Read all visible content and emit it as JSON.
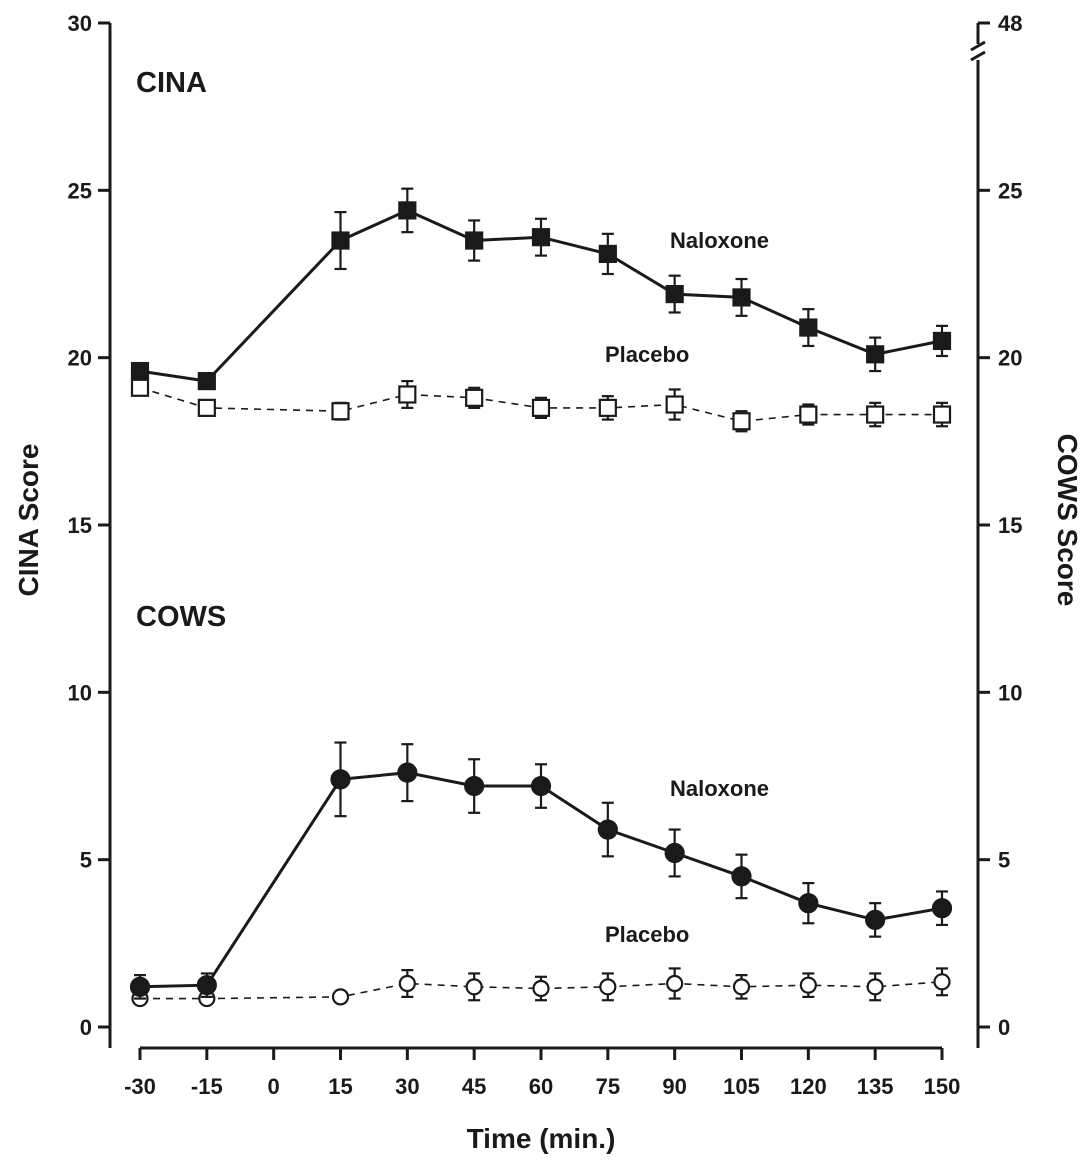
{
  "chart_data": {
    "type": "line",
    "xlabel": "Time (min.)",
    "ylabel_left": "CINA Score",
    "ylabel_right": "COWS Score",
    "x_ticks": [
      "-30",
      "-15",
      "0",
      "15",
      "30",
      "45",
      "60",
      "75",
      "90",
      "105",
      "120",
      "135",
      "150"
    ],
    "xlim": [
      -30,
      150
    ],
    "left_axis": {
      "ylim": [
        0,
        30
      ],
      "ticks": [
        "0",
        "5",
        "10",
        "15",
        "20",
        "25",
        "30"
      ]
    },
    "right_axis": {
      "ticks": [
        "0",
        "5",
        "10",
        "15",
        "20",
        "25",
        "48"
      ],
      "axis_break": true
    },
    "grid": false,
    "panels": [
      {
        "title": "CINA",
        "series": [
          {
            "name": "Naloxone",
            "marker": "filled-square",
            "line": "solid",
            "x": [
              -30,
              -15,
              15,
              30,
              45,
              60,
              75,
              90,
              105,
              120,
              135,
              150
            ],
            "values": [
              19.6,
              19.3,
              23.5,
              24.4,
              23.5,
              23.6,
              23.1,
              21.9,
              21.8,
              20.9,
              20.1,
              20.5
            ],
            "errors": [
              0.2,
              0.2,
              0.85,
              0.65,
              0.6,
              0.55,
              0.6,
              0.55,
              0.55,
              0.55,
              0.5,
              0.45
            ]
          },
          {
            "name": "Placebo",
            "marker": "open-square",
            "line": "dashed",
            "x": [
              -30,
              -15,
              15,
              30,
              45,
              60,
              75,
              90,
              105,
              120,
              135,
              150
            ],
            "values": [
              19.1,
              18.5,
              18.4,
              18.9,
              18.8,
              18.5,
              18.5,
              18.6,
              18.1,
              18.3,
              18.3,
              18.3
            ],
            "errors": [
              0.1,
              0.15,
              0.25,
              0.4,
              0.3,
              0.3,
              0.35,
              0.45,
              0.3,
              0.3,
              0.35,
              0.35
            ]
          }
        ]
      },
      {
        "title": "COWS",
        "series": [
          {
            "name": "Naloxone",
            "marker": "filled-circle",
            "line": "solid",
            "x": [
              -30,
              -15,
              15,
              30,
              45,
              60,
              75,
              90,
              105,
              120,
              135,
              150
            ],
            "values": [
              1.2,
              1.25,
              7.4,
              7.6,
              7.2,
              7.2,
              5.9,
              5.2,
              4.5,
              3.7,
              3.2,
              3.55
            ],
            "errors": [
              0.35,
              0.35,
              1.1,
              0.85,
              0.8,
              0.65,
              0.8,
              0.7,
              0.65,
              0.6,
              0.5,
              0.5
            ]
          },
          {
            "name": "Placebo",
            "marker": "open-circle",
            "line": "dashed",
            "x": [
              -30,
              -15,
              15,
              30,
              45,
              60,
              75,
              90,
              105,
              120,
              135,
              150
            ],
            "values": [
              0.85,
              0.85,
              0.9,
              1.3,
              1.2,
              1.15,
              1.2,
              1.3,
              1.2,
              1.25,
              1.2,
              1.35
            ],
            "errors": [
              0.1,
              0.1,
              0.15,
              0.4,
              0.4,
              0.35,
              0.4,
              0.45,
              0.35,
              0.35,
              0.4,
              0.4
            ]
          }
        ]
      }
    ]
  }
}
